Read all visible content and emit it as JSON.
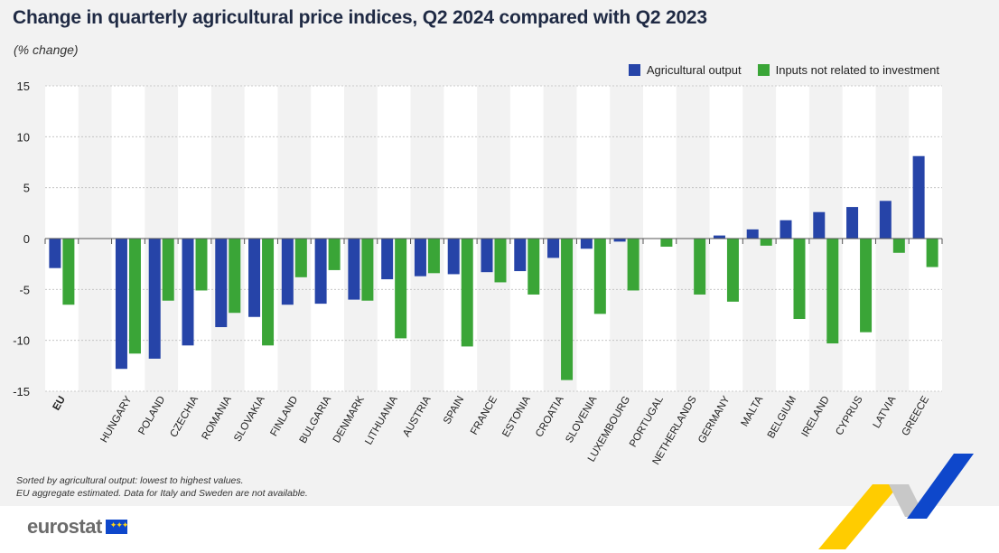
{
  "chart_data": {
    "type": "bar",
    "title": "Change in quarterly agricultural price indices, Q2 2024 compared with Q2 2023",
    "subtitle": "(% change)",
    "ylim": [
      -15,
      15
    ],
    "yticks": [
      "15",
      "10",
      "5",
      "0",
      "-5",
      "-10",
      "-15"
    ],
    "categories": [
      "EU",
      "",
      "HUNGARY",
      "POLAND",
      "CZECHIA",
      "ROMANIA",
      "SLOVAKIA",
      "FINLAND",
      "BULGARIA",
      "DENMARK",
      "LITHUANIA",
      "AUSTRIA",
      "SPAIN",
      "FRANCE",
      "ESTONIA",
      "CROATIA",
      "SLOVENIA",
      "LUXEMBOURG",
      "PORTUGAL",
      "NETHERLANDS",
      "GERMANY",
      "MALTA",
      "BELGIUM",
      "IRELAND",
      "CYPRUS",
      "LATVIA",
      "GREECE"
    ],
    "series": [
      {
        "name": "Agricultural output",
        "color": "#2644a8",
        "values": [
          -2.9,
          null,
          -12.8,
          -11.8,
          -10.5,
          -8.7,
          -7.7,
          -6.5,
          -6.4,
          -6.0,
          -4.0,
          -3.7,
          -3.5,
          -3.3,
          -3.2,
          -1.9,
          -1.0,
          -0.3,
          null,
          null,
          0.3,
          0.9,
          1.8,
          2.6,
          3.1,
          3.7,
          8.1
        ]
      },
      {
        "name": "Inputs not related to investment",
        "color": "#3aa537",
        "values": [
          -6.5,
          null,
          -11.3,
          -6.1,
          -5.1,
          -7.3,
          -10.5,
          -3.8,
          -3.1,
          -6.1,
          -9.8,
          -3.4,
          -10.6,
          -4.3,
          -5.5,
          -13.9,
          -7.4,
          -5.1,
          -0.8,
          -5.5,
          -6.2,
          -0.7,
          -7.9,
          -10.3,
          -9.2,
          -1.4,
          -2.8
        ]
      }
    ]
  },
  "footnotes": [
    "Sorted by agricultural output: lowest to highest values.",
    "EU aggregate estimated. Data for Italy and Sweden are not available."
  ],
  "logo_text": "eurostat",
  "colors": {
    "background": "#f2f2f2",
    "band": "#ffffff",
    "grid": "#bdbdbd",
    "brand_yellow": "#ffcc00",
    "brand_blue": "#0e47cb"
  }
}
